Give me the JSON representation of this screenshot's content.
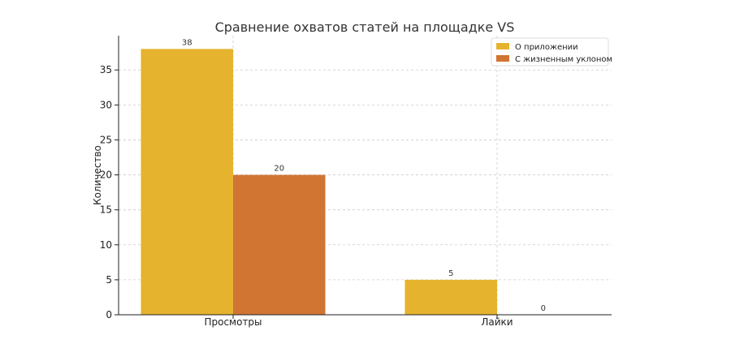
{
  "chart_data": {
    "type": "bar",
    "title": "Сравнение охватов статей на площадке VS",
    "xlabel": "",
    "ylabel": "Количество",
    "categories": [
      "Просмотры",
      "Лайки"
    ],
    "series": [
      {
        "name": "О приложении",
        "values": [
          38,
          5
        ],
        "color": "#E6B32E"
      },
      {
        "name": "С жизненным уклоном",
        "values": [
          20,
          0
        ],
        "color": "#D17533"
      }
    ],
    "ylim": [
      0,
      39.9
    ],
    "yticks": [
      0,
      5,
      10,
      15,
      20,
      25,
      30,
      35
    ],
    "grid": true,
    "legend": "top-right",
    "data_labels": true
  }
}
